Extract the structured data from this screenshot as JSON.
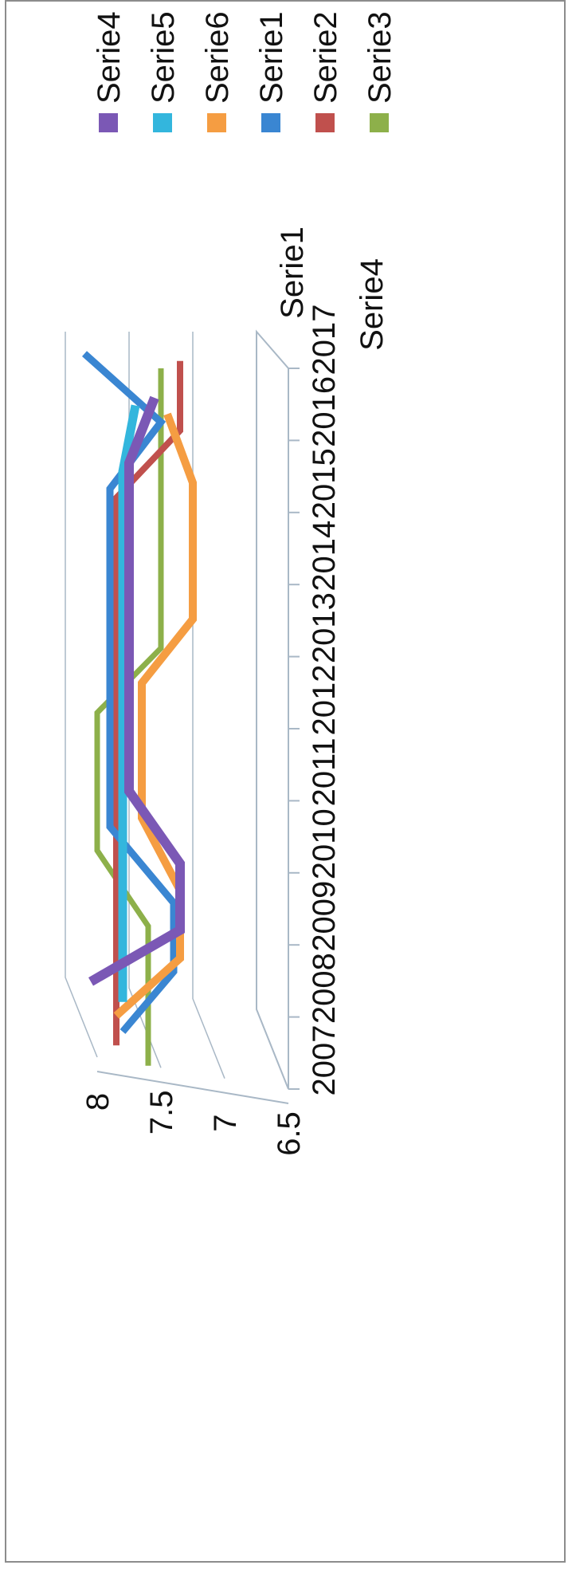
{
  "chart_data": {
    "type": "line",
    "title": "",
    "xlabel": "",
    "ylabel": "",
    "ylim": [
      6.5,
      8
    ],
    "yticks": [
      "8",
      "7.5",
      "7",
      "6.5"
    ],
    "categories": [
      "2007",
      "2008",
      "2009",
      "2010",
      "2011",
      "2012",
      "2013",
      "2014",
      "2015",
      "2016",
      "2017"
    ],
    "depth_labels": [
      "Serie1",
      "Serie4"
    ],
    "legend_position": "right",
    "series": [
      {
        "name": "Serie4",
        "color": "#7b58b5",
        "values": [
          7.8,
          7.1,
          7.1,
          7.5,
          7.5,
          7.5,
          7.5,
          7.5,
          7.5,
          7.3,
          null
        ]
      },
      {
        "name": "Serie5",
        "color": "#33b6dd",
        "values": [
          7.6,
          7.6,
          7.6,
          7.6,
          7.6,
          7.6,
          7.6,
          7.6,
          7.6,
          7.5,
          null
        ]
      },
      {
        "name": "Serie6",
        "color": "#f59d42",
        "values": [
          7.7,
          7.2,
          7.2,
          7.5,
          7.5,
          7.5,
          7.1,
          7.1,
          7.1,
          7.3,
          null
        ]
      },
      {
        "name": "Serie1",
        "color": "#3a86d2",
        "values": [
          7.7,
          7.3,
          7.3,
          7.8,
          7.8,
          7.8,
          7.8,
          7.8,
          7.8,
          7.4,
          8.0
        ]
      },
      {
        "name": "Serie2",
        "color": "#c0504d",
        "values": [
          7.8,
          7.8,
          7.8,
          7.8,
          7.8,
          7.8,
          7.8,
          7.8,
          7.8,
          7.3,
          7.3
        ]
      },
      {
        "name": "Serie3",
        "color": "#8db04a",
        "values": [
          7.6,
          7.6,
          7.6,
          8.0,
          8.0,
          8.0,
          7.5,
          7.5,
          7.5,
          7.5,
          7.5
        ]
      }
    ]
  }
}
